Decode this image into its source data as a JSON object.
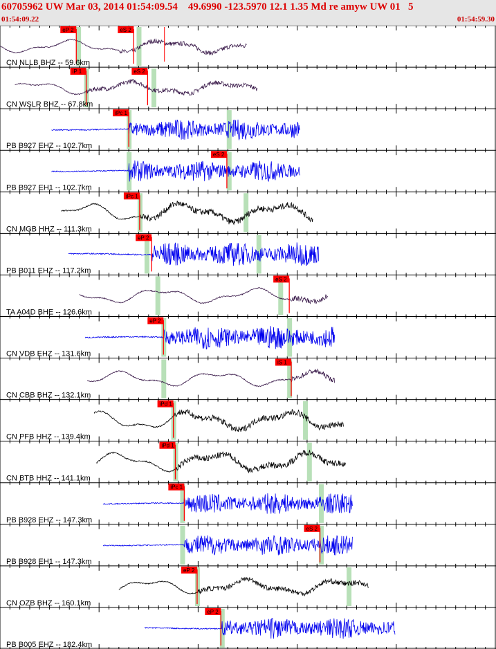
{
  "header": {
    "title": "60705962 UW Mar 03, 2014 01:54:09.54    49.6990 -123.5970 12.1 1.35 Md re amyw UW 01   5",
    "start_time": "01:54:09.22",
    "end_time": "01:54:59.30"
  },
  "chart_data": {
    "type": "line",
    "title": "60705962 UW Mar 03, 2014 01:54:09.54    49.6990 -123.5970 12.1 1.35 Md re amyw UW 01   5",
    "xlabel": "",
    "ylabel": "",
    "x_range": [
      "01:54:09.22",
      "01:54:59.30"
    ],
    "time_span_s": 50.08,
    "grid": true,
    "tick_interval_s": 1,
    "major_tick_interval_s": 10,
    "colors": {
      "pick": "#ff0000",
      "predicted": "#b8e0b8",
      "header_bg": "#e6e6e6",
      "title": "#dd0000"
    },
    "traces": [
      {
        "label": "CN NLLB BHZ -- 59.6km",
        "color": "#3a1a4a",
        "kind": "lp",
        "start_s": 0,
        "end_s": 24.9,
        "amp": 0.35,
        "onset_s": 12.0,
        "picks": [
          {
            "label": "eP 2",
            "t_s": 7.7
          },
          {
            "label": "eS 2",
            "t_s": 13.5
          }
        ],
        "predicted": [
          7.9,
          14.0
        ],
        "marker_s": 16.6
      },
      {
        "label": "CN WSLR BHZ -- 67.8km",
        "color": "#3a1a4a",
        "kind": "lp",
        "start_s": 1.5,
        "end_s": 26.0,
        "amp": 0.35,
        "onset_s": 8.7,
        "picks": [
          {
            "label": "iP 1",
            "t_s": 8.7
          },
          {
            "label": "eS 2",
            "t_s": 14.9
          }
        ],
        "predicted": [
          8.7,
          15.5
        ]
      },
      {
        "label": "PB B927 EHZ -- 102.7km",
        "color": "#0000ee",
        "kind": "bb",
        "start_s": 5.2,
        "end_s": 30.3,
        "amp": 0.4,
        "onset_s": 13.0,
        "picks": [
          {
            "label": "iPc 1",
            "t_s": 13.0
          }
        ],
        "predicted": [
          13.0,
          23.1
        ]
      },
      {
        "label": "PB B927 EH1 -- 102.7km",
        "color": "#0000ee",
        "kind": "bb",
        "start_s": 5.2,
        "end_s": 30.3,
        "amp": 0.4,
        "onset_s": 13.0,
        "picks": [
          {
            "label": "eS 2",
            "t_s": 22.9
          }
        ],
        "predicted": [
          13.0,
          23.1
        ]
      },
      {
        "label": "CN MGB HHZ -- 111.3km",
        "color": "#000000",
        "kind": "lp",
        "start_s": 6.2,
        "end_s": 31.6,
        "amp": 0.5,
        "onset_s": 14.1,
        "picks": [
          {
            "label": "iPc 1",
            "t_s": 14.1
          }
        ],
        "predicted": [
          14.1,
          24.8
        ]
      },
      {
        "label": "PB B011 EHZ -- 117.2km",
        "color": "#0000ee",
        "kind": "bb",
        "start_s": 6.9,
        "end_s": 32.2,
        "amp": 0.45,
        "onset_s": 15.3,
        "picks": [
          {
            "label": "eP 2",
            "t_s": 15.3
          }
        ],
        "predicted": [
          14.8,
          26.1
        ]
      },
      {
        "label": "TA A04D BHE -- 126.6km",
        "color": "#3a1a4a",
        "kind": "lp",
        "start_s": 8.0,
        "end_s": 33.1,
        "amp": 0.4,
        "onset_s": 29.2,
        "picks": [
          {
            "label": "eS 2",
            "t_s": 29.2
          }
        ],
        "predicted": [
          15.9,
          28.3
        ]
      },
      {
        "label": "CN VDB EHZ -- 131.6km",
        "color": "#0000ee",
        "kind": "bb",
        "start_s": 8.6,
        "end_s": 33.8,
        "amp": 0.45,
        "onset_s": 16.5,
        "picks": [
          {
            "label": "eP 2",
            "t_s": 16.5
          }
        ],
        "predicted": [
          16.5,
          29.2
        ]
      },
      {
        "label": "CN CBB BHZ -- 132.1km",
        "color": "#3a1a4a",
        "kind": "lp",
        "start_s": 8.8,
        "end_s": 33.8,
        "amp": 0.4,
        "onset_s": 29.4,
        "picks": [
          {
            "label": "iS 1",
            "t_s": 29.4
          }
        ],
        "predicted": [
          16.5,
          29.2
        ]
      },
      {
        "label": "CN PFB HHZ -- 139.4km",
        "color": "#000000",
        "kind": "lp",
        "start_s": 9.5,
        "end_s": 34.7,
        "amp": 0.5,
        "onset_s": 17.5,
        "picks": [
          {
            "label": "iPd 1",
            "t_s": 17.5
          }
        ],
        "predicted": [
          17.5,
          30.8
        ]
      },
      {
        "label": "CN BTB HHZ -- 141.1km",
        "color": "#000000",
        "kind": "lp",
        "start_s": 9.7,
        "end_s": 34.9,
        "amp": 0.5,
        "onset_s": 17.7,
        "picks": [
          {
            "label": "iPd 1",
            "t_s": 17.7
          }
        ],
        "predicted": [
          17.7,
          31.2
        ]
      },
      {
        "label": "PB B928 EHZ -- 147.3km",
        "color": "#0000ee",
        "kind": "bb",
        "start_s": 10.4,
        "end_s": 35.6,
        "amp": 0.4,
        "onset_s": 18.6,
        "picks": [
          {
            "label": "iPc 1",
            "t_s": 18.6
          }
        ],
        "predicted": [
          18.4,
          32.4
        ]
      },
      {
        "label": "PB B928 EH1 -- 147.3km",
        "color": "#0000ee",
        "kind": "bb",
        "start_s": 10.4,
        "end_s": 35.6,
        "amp": 0.4,
        "onset_s": 18.6,
        "picks": [
          {
            "label": "eS 2",
            "t_s": 32.3
          }
        ],
        "predicted": [
          18.4,
          32.4
        ]
      },
      {
        "label": "CN OZB BHZ -- 160.1km",
        "color": "#000000",
        "kind": "lp",
        "start_s": 12.0,
        "end_s": 37.2,
        "amp": 0.4,
        "onset_s": 20.0,
        "picks": [
          {
            "label": "eP 2",
            "t_s": 19.9
          }
        ],
        "predicted": [
          19.9,
          35.2
        ]
      },
      {
        "label": "PB B005 EHZ -- 182.4km",
        "color": "#0000ee",
        "kind": "bb",
        "start_s": 14.6,
        "end_s": 39.9,
        "amp": 0.4,
        "onset_s": 22.4,
        "picks": [
          {
            "label": "eP 2",
            "t_s": 22.3
          }
        ],
        "predicted": [
          22.4
        ]
      }
    ]
  }
}
